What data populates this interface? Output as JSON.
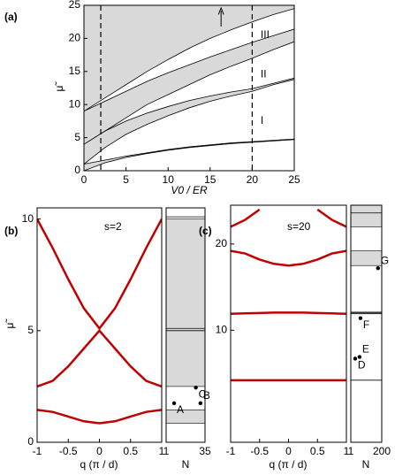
{
  "chart_data": [
    {
      "type": "band",
      "label": "(a)",
      "xlabel": "V0 / ER",
      "ylabel": "μ̃",
      "xlim": [
        0,
        25
      ],
      "ylim": [
        0,
        25
      ],
      "xticks": [
        0,
        5,
        10,
        15,
        20,
        25
      ],
      "yticks": [
        0,
        5,
        10,
        15,
        20,
        25
      ],
      "color": "#d9d9d9",
      "x": [
        0,
        2.5,
        5,
        7.5,
        10,
        12.5,
        15,
        17.5,
        20,
        22.5,
        25
      ],
      "bands": [
        {
          "lower": [
            0,
            1.2,
            2.0,
            2.6,
            3.1,
            3.5,
            3.8,
            4.1,
            4.3,
            4.5,
            4.7
          ],
          "upper": [
            1,
            1.6,
            2.2,
            2.7,
            3.2,
            3.6,
            3.9,
            4.2,
            4.4,
            4.6,
            4.8
          ]
        },
        {
          "lower": [
            1,
            3.5,
            5.5,
            7,
            8.3,
            9.5,
            10.5,
            11.3,
            12,
            13,
            13.8
          ],
          "upper": [
            4,
            6,
            7.5,
            8.7,
            9.7,
            10.6,
            11.3,
            11.9,
            12.4,
            13.2,
            14
          ]
        },
        {
          "lower": [
            4,
            6,
            8,
            10,
            11.5,
            13,
            14.5,
            15.8,
            17,
            18.3,
            19.5
          ],
          "upper": [
            9,
            10.5,
            12,
            13.5,
            14.8,
            16,
            17.2,
            18.3,
            19.4,
            20.4,
            21.4
          ]
        },
        {
          "lower": [
            9,
            11,
            13,
            15,
            16.8,
            18.5,
            20,
            21.3,
            22.5,
            23.6,
            24.5
          ],
          "upper": [
            25,
            25,
            25,
            25,
            25,
            25,
            25,
            25,
            25,
            25,
            25
          ]
        }
      ],
      "markers": [
        2,
        20
      ],
      "annotations": [
        "I",
        "II",
        "III"
      ]
    },
    {
      "type": "line",
      "label": "(b)",
      "text": "s=2",
      "xlabel": "q (π / d)",
      "ylabel": "μ̃",
      "xlim": [
        -1,
        1
      ],
      "ylim": [
        0,
        10.5
      ],
      "xticks": [
        -1,
        -0.5,
        0,
        0.5,
        1
      ],
      "yticks": [
        0,
        5,
        10
      ],
      "x": [
        -1,
        -0.75,
        -0.5,
        -0.25,
        0,
        0.25,
        0.5,
        0.75,
        1
      ],
      "series": [
        {
          "color": "#c00000",
          "values": [
            1.45,
            1.36,
            1.15,
            0.94,
            0.85,
            0.94,
            1.15,
            1.36,
            1.45
          ]
        },
        {
          "color": "#c00000",
          "values": [
            2.5,
            2.75,
            3.4,
            4.2,
            5.0,
            4.2,
            3.4,
            2.75,
            2.5
          ]
        },
        {
          "color": "#c00000",
          "values": [
            10.0,
            8.7,
            7.3,
            6.0,
            5.1,
            6.0,
            7.3,
            8.7,
            10.0
          ]
        }
      ]
    },
    {
      "type": "levels",
      "xlabel": "N",
      "xlim": [
        1,
        35
      ],
      "ylim": [
        0,
        10.5
      ],
      "xticks": [
        1,
        35
      ],
      "color": "#d9d9d9",
      "bands": [
        {
          "lower": 0.85,
          "upper": 1.45
        },
        {
          "lower": 2.5,
          "upper": 10.0
        }
      ],
      "lines": [
        5.0,
        5.1,
        10.1
      ],
      "points": {
        "x": [
          8,
          31,
          27
        ],
        "y": [
          1.75,
          1.75,
          2.45
        ],
        "labels": [
          "A",
          "B",
          "C"
        ]
      }
    },
    {
      "type": "line",
      "label": "(c)",
      "text": "s=20",
      "xlabel": "q (π / d)",
      "xlim": [
        -1,
        1
      ],
      "ylim": [
        -3,
        24.5
      ],
      "xticks": [
        -1,
        -0.5,
        0,
        0.5,
        1
      ],
      "yticks": [
        10,
        20
      ],
      "x": [
        -1,
        -0.75,
        -0.5,
        -0.25,
        0,
        0.25,
        0.5,
        0.75,
        1
      ],
      "series": [
        {
          "color": "#c00000",
          "values": [
            4.2,
            4.2,
            4.2,
            4.2,
            4.2,
            4.2,
            4.2,
            4.2,
            4.2
          ]
        },
        {
          "color": "#c00000",
          "values": [
            11.9,
            11.95,
            12.0,
            12.05,
            12.05,
            12.05,
            12.0,
            11.95,
            11.9
          ]
        },
        {
          "color": "#c00000",
          "values": [
            19.2,
            18.9,
            18.2,
            17.7,
            17.5,
            17.7,
            18.2,
            18.9,
            19.2
          ]
        },
        {
          "color": "#c00000",
          "values": [
            22.0,
            22.8,
            24.0,
            null,
            null,
            null,
            24.0,
            22.8,
            22.0
          ]
        }
      ]
    },
    {
      "type": "levels",
      "xlabel": "N",
      "xlim": [
        1,
        200
      ],
      "ylim": [
        -3,
        24.5
      ],
      "xticks": [
        1,
        200
      ],
      "color": "#d9d9d9",
      "bands": [
        {
          "lower": 22.0,
          "upper": 24.5
        },
        {
          "lower": 17.5,
          "upper": 19.2
        },
        {
          "lower": 11.9,
          "upper": 12.1
        }
      ],
      "lines": [
        4.2,
        12.0,
        23.6
      ],
      "points": {
        "x": [
          29,
          57,
          63,
          176
        ],
        "y": [
          6.7,
          6.9,
          11.4,
          17.2
        ],
        "labels": [
          "D",
          "E",
          "F",
          "G"
        ]
      }
    }
  ]
}
